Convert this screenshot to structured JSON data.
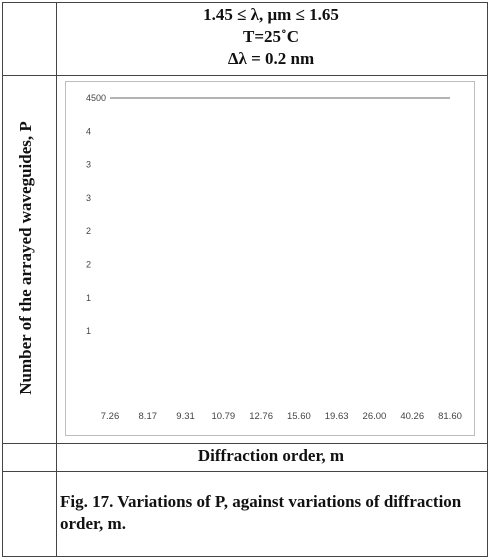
{
  "header": {
    "line1": "1.45 ≤ λ, μm ≤ 1.65",
    "line2": "T=25˚C",
    "line3": "Δλ = 0.2 nm"
  },
  "chart_data": {
    "type": "line",
    "ylabel": "Number of the arrayed waveguides, P",
    "xlabel": "Diffraction order, m",
    "x_tick_labels": [
      "7.26",
      "8.17",
      "9.31",
      "10.79",
      "12.76",
      "15.60",
      "19.63",
      "26.00",
      "40.26",
      "81.60"
    ],
    "y_tick_labels": [
      "4500",
      "4",
      "3",
      "3",
      "2",
      "2",
      "1",
      "1",
      ""
    ],
    "series": [
      {
        "values": [
          4500,
          4500,
          4500,
          4500,
          4500,
          4500,
          4500,
          4500,
          4500,
          4500
        ]
      }
    ],
    "line_color": "#9a9a9a"
  },
  "caption": "Fig. 17. Variations of  P, against variations of diffraction order, m."
}
